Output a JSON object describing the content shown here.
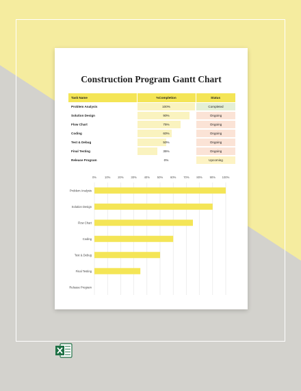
{
  "colors": {
    "background_gray": "#d3d2cd",
    "background_yellow": "#f5ec9f",
    "header_yellow": "#f4e556",
    "bar_yellow": "#f4e556",
    "pct_bg": "#faf3bf",
    "status_completed": "#e4efd6",
    "status_ongoing": "#fbe3d6",
    "status_upcoming": "#fdf3c4"
  },
  "document": {
    "title": "Construction Program Gantt Chart"
  },
  "table": {
    "headers": [
      "Task Name",
      "%Completion",
      "Status"
    ],
    "rows": [
      {
        "task": "Problem Analysis",
        "pct_label": "100%",
        "pct": 100,
        "status": "Completed",
        "status_kind": "completed"
      },
      {
        "task": "Solution Design",
        "pct_label": "90%",
        "pct": 90,
        "status": "Ongoing",
        "status_kind": "ongoing"
      },
      {
        "task": "Flow Chart",
        "pct_label": "75%",
        "pct": 75,
        "status": "Ongoing",
        "status_kind": "ongoing"
      },
      {
        "task": "Coding",
        "pct_label": "60%",
        "pct": 60,
        "status": "Ongoing",
        "status_kind": "ongoing"
      },
      {
        "task": "Test & Debug",
        "pct_label": "50%",
        "pct": 50,
        "status": "Ongoing",
        "status_kind": "ongoing"
      },
      {
        "task": "Final Testing",
        "pct_label": "35%",
        "pct": 35,
        "status": "Ongoing",
        "status_kind": "ongoing"
      },
      {
        "task": "Release Program",
        "pct_label": "0%",
        "pct": 0,
        "status": "Upcoming",
        "status_kind": "upcoming"
      }
    ]
  },
  "chart_data": {
    "type": "bar",
    "orientation": "horizontal",
    "categories": [
      "Problem Analysis",
      "Solution Design",
      "Flow Chart",
      "Coding",
      "Test & Debug",
      "Final Testing",
      "Release Program"
    ],
    "values": [
      100,
      90,
      75,
      60,
      50,
      35,
      0
    ],
    "xlim": [
      0,
      100
    ],
    "xticks": [
      "0%",
      "10%",
      "20%",
      "30%",
      "40%",
      "50%",
      "60%",
      "70%",
      "80%",
      "90%",
      "100%"
    ],
    "grid": true,
    "bar_color": "#f4e556"
  },
  "footer": {
    "icon": "excel-icon"
  }
}
